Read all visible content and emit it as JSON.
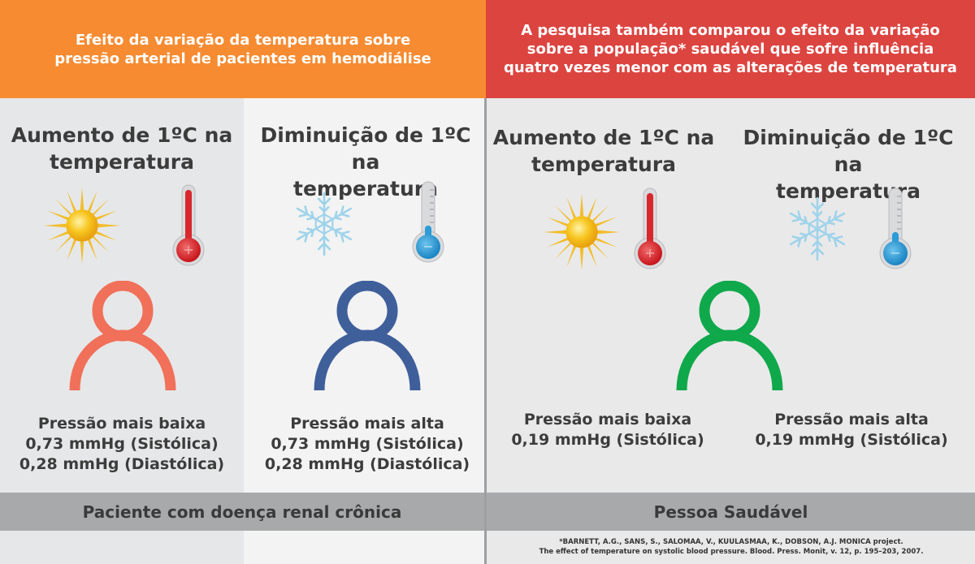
{
  "header": {
    "left": "Efeito da variação da temperatura sobre\npressão arterial de pacientes em hemodiálise",
    "right": "A pesquisa também comparou o efeito da variação\nsobre a população* saudável que sofre influência\nquatro vezes menor com as alterações de temperatura"
  },
  "columns": [
    {
      "title": "Aumento de 1ºC na\ntemperatura",
      "icons": [
        "sun-icon",
        "thermometer-hot-icon"
      ],
      "person_color": "#f0705a",
      "result": [
        "Pressão mais baixa",
        "0,73 mmHg (Sistólica)",
        "0,28 mmHg (Diastólica)"
      ]
    },
    {
      "title": "Diminuição de 1ºC na\ntemperatura",
      "icons": [
        "snowflake-icon",
        "thermometer-cold-icon"
      ],
      "person_color": "#3f5f9b",
      "result": [
        "Pressão mais alta",
        "0,73 mmHg (Sistólica)",
        "0,28 mmHg (Diastólica)"
      ]
    },
    {
      "title": "Aumento de 1ºC na\ntemperatura",
      "icons": [
        "sun-icon",
        "thermometer-hot-icon"
      ],
      "result": [
        "Pressão mais baixa",
        "0,19 mmHg (Sistólica)"
      ]
    },
    {
      "title": "Diminuição de 1ºC na\ntemperatura",
      "icons": [
        "snowflake-icon",
        "thermometer-cold-icon"
      ],
      "result": [
        "Pressão mais alta",
        "0,19 mmHg (Sistólica)"
      ]
    }
  ],
  "healthy_person_color": "#0fa84a",
  "footer": {
    "left": "Paciente com doença renal crônica",
    "right": "Pessoa Saudável"
  },
  "reference": [
    "*BARNETT, A.G., SANS, S., SALOMAA, V., KUULASMAA, K., DOBSON, A.J. MONICA project.",
    "The effect of temperature on systolic blood pressure. Blood. Press. Monit, v. 12, p. 195–203, 2007."
  ],
  "colors": {
    "header_left": "#f68b31",
    "header_right": "#dc4440",
    "thermo_hot": "#d9272e",
    "thermo_cold": "#2b9cd8",
    "sun": "#f5c21b",
    "snow": "#9fd3ea"
  }
}
